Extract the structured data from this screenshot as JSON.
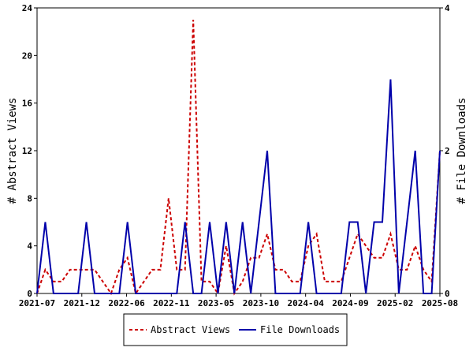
{
  "chart_data": {
    "type": "line",
    "title": "",
    "x_tick_labels": [
      "2021-07",
      "2021-12",
      "2022-06",
      "2022-11",
      "2023-05",
      "2023-10",
      "2024-04",
      "2024-09",
      "2025-02",
      "2025-08"
    ],
    "left_axis": {
      "label": "# Abstract Views",
      "ylim": [
        0,
        24
      ],
      "ticks": [
        "0",
        "4",
        "8",
        "12",
        "16",
        "20",
        "24"
      ]
    },
    "right_axis": {
      "label": "# File Downloads",
      "ylim": [
        0,
        4
      ],
      "ticks": [
        "0",
        "2",
        "4"
      ]
    },
    "grid": false,
    "legend_position": "bottom",
    "n_points": 50,
    "series": [
      {
        "name": "Abstract Views",
        "axis": "left",
        "color": "#cc0000",
        "style": "dashed",
        "values": [
          0,
          2,
          1,
          1,
          2,
          2,
          2,
          2,
          1,
          0,
          2,
          3,
          0,
          1,
          2,
          2,
          8,
          2,
          2,
          23,
          1,
          1,
          0,
          4,
          0,
          1,
          3,
          3,
          5,
          2,
          2,
          1,
          1,
          4,
          5,
          1,
          1,
          1,
          3,
          5,
          4,
          3,
          3,
          5,
          2,
          2,
          4,
          2,
          1,
          12
        ]
      },
      {
        "name": "File Downloads",
        "axis": "right",
        "color": "#0000aa",
        "style": "solid",
        "values": [
          0,
          1,
          0,
          0,
          0,
          0,
          1,
          0,
          0,
          0,
          0,
          1,
          0,
          0,
          0,
          0,
          0,
          0,
          1,
          0,
          0,
          1,
          0,
          1,
          0,
          1,
          0,
          1,
          2,
          0,
          0,
          0,
          0,
          1,
          0,
          0,
          0,
          0,
          1,
          1,
          0,
          1,
          1,
          3,
          0,
          1,
          2,
          0,
          0,
          2
        ]
      }
    ]
  }
}
